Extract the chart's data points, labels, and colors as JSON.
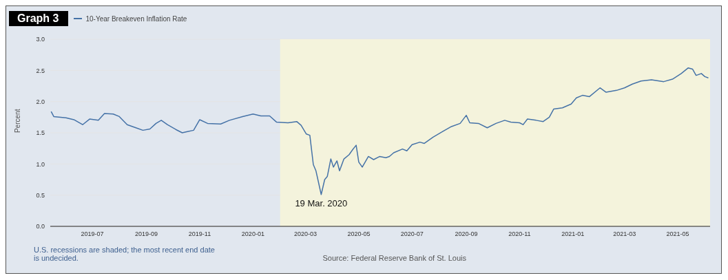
{
  "chart_data": {
    "type": "line",
    "title": "Graph 3",
    "ylabel": "Percent",
    "x": [
      "2019-05-15",
      "2019-05-18",
      "2019-06-01",
      "2019-06-10",
      "2019-06-20",
      "2019-06-28",
      "2019-07-08",
      "2019-07-15",
      "2019-07-25",
      "2019-08-01",
      "2019-08-10",
      "2019-08-20",
      "2019-08-28",
      "2019-09-05",
      "2019-09-12",
      "2019-09-18",
      "2019-09-25",
      "2019-10-05",
      "2019-10-12",
      "2019-10-18",
      "2019-10-25",
      "2019-11-01",
      "2019-11-10",
      "2019-11-25",
      "2019-12-05",
      "2019-12-20",
      "2020-01-01",
      "2020-01-10",
      "2020-01-20",
      "2020-01-28",
      "2020-02-10",
      "2020-02-20",
      "2020-02-25",
      "2020-03-02",
      "2020-03-06",
      "2020-03-10",
      "2020-03-13",
      "2020-03-19",
      "2020-03-23",
      "2020-03-26",
      "2020-03-30",
      "2020-04-02",
      "2020-04-06",
      "2020-04-09",
      "2020-04-14",
      "2020-04-20",
      "2020-04-24",
      "2020-04-28",
      "2020-05-01",
      "2020-05-05",
      "2020-05-12",
      "2020-05-18",
      "2020-05-25",
      "2020-06-01",
      "2020-06-05",
      "2020-06-10",
      "2020-06-20",
      "2020-06-25",
      "2020-07-01",
      "2020-07-10",
      "2020-07-15",
      "2020-07-25",
      "2020-08-05",
      "2020-08-15",
      "2020-08-25",
      "2020-09-01",
      "2020-09-05",
      "2020-09-15",
      "2020-09-25",
      "2020-10-05",
      "2020-10-15",
      "2020-10-22",
      "2020-11-01",
      "2020-11-05",
      "2020-11-10",
      "2020-11-20",
      "2020-11-28",
      "2020-12-05",
      "2020-12-10",
      "2020-12-20",
      "2020-12-30",
      "2021-01-05",
      "2021-01-12",
      "2021-01-20",
      "2021-02-01",
      "2021-02-08",
      "2021-02-20",
      "2021-03-01",
      "2021-03-10",
      "2021-03-20",
      "2021-04-01",
      "2021-04-15",
      "2021-04-25",
      "2021-05-05",
      "2021-05-13",
      "2021-05-18",
      "2021-05-22",
      "2021-05-28",
      "2021-06-01",
      "2021-06-05"
    ],
    "series": [
      {
        "name": "10-Year Breakeven Inflation Rate",
        "color": "#4572a7",
        "values": [
          1.84,
          1.76,
          1.74,
          1.71,
          1.63,
          1.72,
          1.7,
          1.81,
          1.8,
          1.76,
          1.63,
          1.58,
          1.54,
          1.56,
          1.65,
          1.7,
          1.63,
          1.55,
          1.5,
          1.52,
          1.54,
          1.71,
          1.65,
          1.64,
          1.7,
          1.76,
          1.8,
          1.77,
          1.77,
          1.67,
          1.66,
          1.68,
          1.62,
          1.48,
          1.46,
          0.99,
          0.89,
          0.51,
          0.75,
          0.8,
          1.08,
          0.95,
          1.05,
          0.89,
          1.08,
          1.15,
          1.23,
          1.3,
          1.03,
          0.95,
          1.12,
          1.07,
          1.12,
          1.1,
          1.12,
          1.18,
          1.24,
          1.21,
          1.31,
          1.35,
          1.33,
          1.43,
          1.52,
          1.6,
          1.65,
          1.78,
          1.66,
          1.65,
          1.58,
          1.65,
          1.7,
          1.67,
          1.66,
          1.63,
          1.72,
          1.7,
          1.68,
          1.75,
          1.88,
          1.9,
          1.96,
          2.06,
          2.1,
          2.08,
          2.22,
          2.15,
          2.18,
          2.22,
          2.28,
          2.33,
          2.35,
          2.32,
          2.36,
          2.45,
          2.54,
          2.52,
          2.42,
          2.45,
          2.4,
          2.38
        ]
      }
    ],
    "xlim": [
      "2019-05-14",
      "2021-06-07"
    ],
    "xticks": [
      {
        "value": "2019-07-01",
        "label": "2019-07"
      },
      {
        "value": "2019-09-01",
        "label": "2019-09"
      },
      {
        "value": "2019-11-01",
        "label": "2019-11"
      },
      {
        "value": "2020-01-01",
        "label": "2020-01"
      },
      {
        "value": "2020-03-01",
        "label": "2020-03"
      },
      {
        "value": "2020-05-01",
        "label": "2020-05"
      },
      {
        "value": "2020-07-01",
        "label": "2020-07"
      },
      {
        "value": "2020-09-01",
        "label": "2020-09"
      },
      {
        "value": "2020-11-01",
        "label": "2020-11"
      },
      {
        "value": "2021-01-01",
        "label": "2021-01"
      },
      {
        "value": "2021-03-01",
        "label": "2021-03"
      },
      {
        "value": "2021-05-01",
        "label": "2021-05"
      }
    ],
    "ylim": [
      0,
      3
    ],
    "yticks": [
      {
        "value": 0,
        "label": "0.0"
      },
      0.5,
      {
        "value": 1,
        "label": "1.0"
      },
      1.5,
      {
        "value": 2,
        "label": "2.0"
      },
      2.5,
      {
        "value": 3,
        "label": "3.0"
      }
    ],
    "bands": [
      {
        "axis": "x",
        "from": "2020-02-01",
        "to": "2021-06-07",
        "color": "#f4f3dc"
      }
    ],
    "grid": "y",
    "legend": "top left",
    "marker": "none",
    "line_style": "solid",
    "annotations": [
      {
        "text": "19 Mar. 2020",
        "x": "2020-03-19",
        "y": 0.51
      },
      "U.S. recessions are shaded; the most recent end date is undecided.",
      "Source: Federal Reserve Bank of St. Louis"
    ]
  }
}
